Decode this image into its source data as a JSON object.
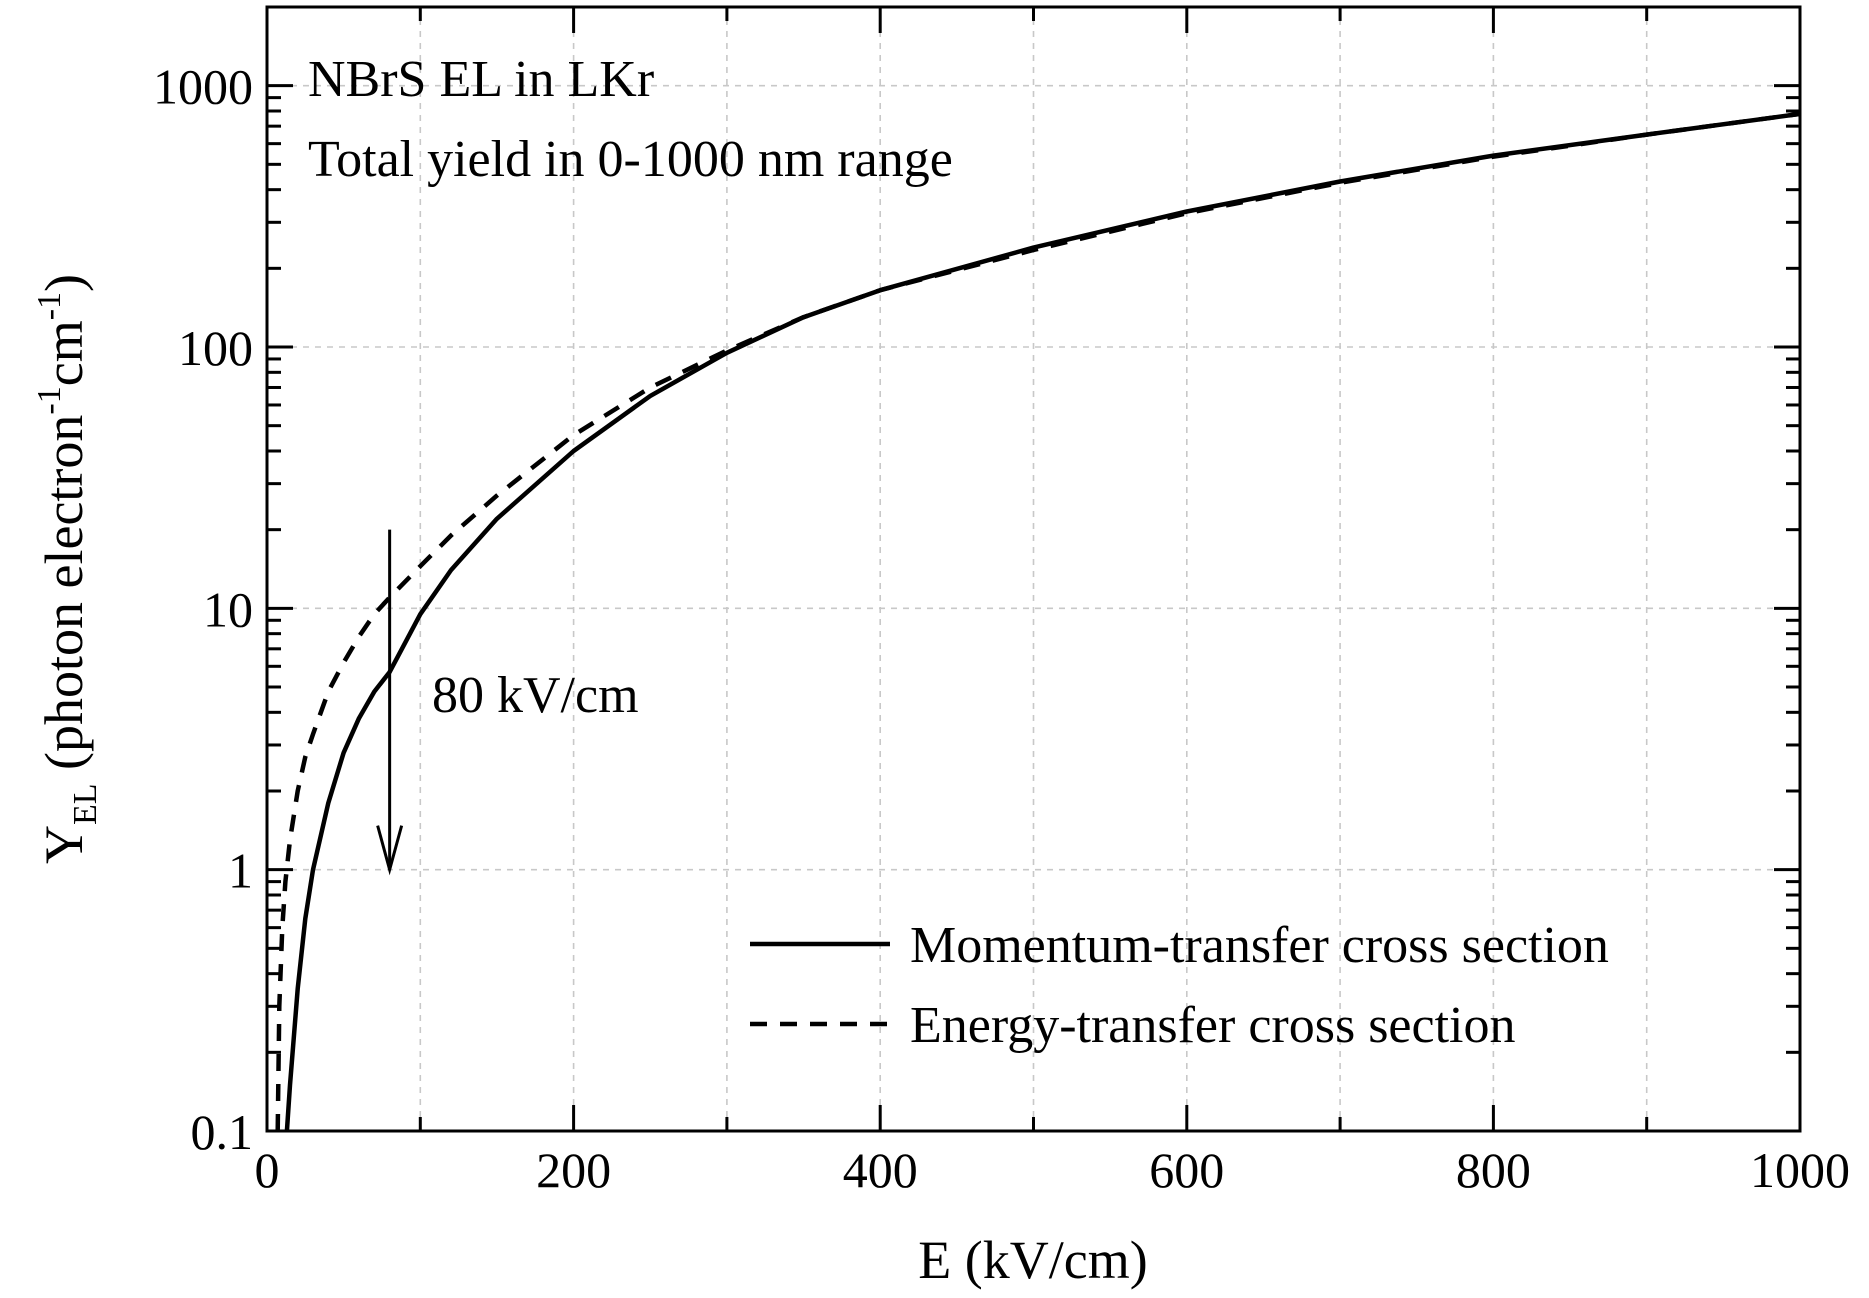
{
  "chart_data": {
    "type": "line",
    "annotations": [
      {
        "id": "title1",
        "text": "NBrS EL in LKr"
      },
      {
        "id": "title2",
        "text": "Total yield in 0-1000 nm range"
      },
      {
        "id": "arrow",
        "text": "80 kV/cm",
        "x": 80,
        "y_from": 20,
        "y_to": 1.0
      }
    ],
    "xlabel": "E (kV/cm)",
    "ylabel": {
      "main": "Y",
      "sub": "EL",
      "open": " (photon electron",
      "sup1": "-1",
      "mid": "cm",
      "sup2": "-1",
      "close": ")"
    },
    "xlim": [
      0,
      1000
    ],
    "ylim": [
      0.1,
      2000
    ],
    "yscale": "log",
    "grid": true,
    "x_ticks": [
      0,
      200,
      400,
      600,
      800,
      1000
    ],
    "x_tick_labels": [
      "0",
      "200",
      "400",
      "600",
      "800",
      "1000"
    ],
    "y_ticks": [
      0.1,
      1,
      10,
      100,
      1000
    ],
    "y_tick_labels": [
      "0.1",
      "1",
      "10",
      "100",
      "1000"
    ],
    "legend_position": "bottom-right",
    "series": [
      {
        "name": "Momentum-transfer cross section",
        "style": "solid",
        "x": [
          13,
          15,
          20,
          25,
          30,
          40,
          50,
          60,
          70,
          80,
          100,
          120,
          150,
          200,
          250,
          300,
          350,
          400,
          500,
          600,
          700,
          800,
          900,
          1000
        ],
        "y": [
          0.1,
          0.15,
          0.35,
          0.65,
          1.0,
          1.8,
          2.8,
          3.8,
          4.8,
          5.7,
          9.5,
          14,
          22,
          40,
          65,
          95,
          130,
          165,
          240,
          330,
          430,
          540,
          650,
          780
        ]
      },
      {
        "name": "Energy-transfer cross section",
        "style": "dashed",
        "x": [
          7,
          8,
          10,
          12,
          15,
          20,
          25,
          30,
          40,
          50,
          60,
          70,
          80,
          100,
          120,
          150,
          200,
          250,
          300,
          350,
          400,
          500,
          600,
          700,
          800,
          900,
          1000
        ],
        "y": [
          0.1,
          0.3,
          0.6,
          0.9,
          1.3,
          2.0,
          2.7,
          3.3,
          4.8,
          6.2,
          7.8,
          9.5,
          11,
          14.5,
          19,
          27,
          46,
          70,
          97,
          130,
          165,
          235,
          325,
          425,
          535,
          650,
          780
        ]
      }
    ]
  }
}
